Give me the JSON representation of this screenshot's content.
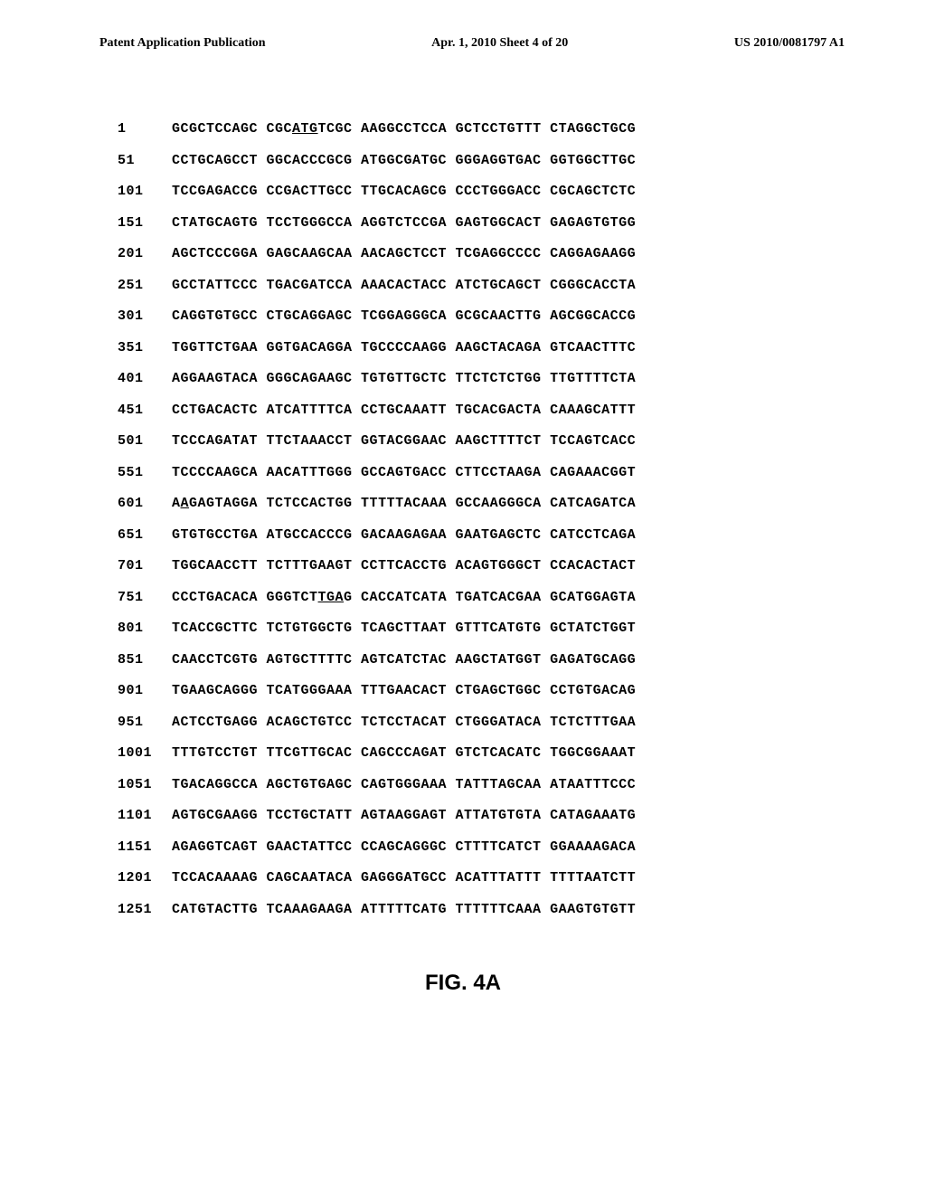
{
  "header": {
    "left": "Patent Application Publication",
    "center": "Apr. 1, 2010   Sheet 4 of 20",
    "right": "US 2010/0081797 A1"
  },
  "figure_label": "FIG.  4A",
  "sequence": {
    "font_family": "Courier New",
    "font_size": 15,
    "font_weight": "bold",
    "line_height": 2.3,
    "rows": [
      {
        "pos": "1",
        "blocks": [
          "GCGCTCCAGC",
          "CGC<u>ATG</u>TCGC",
          "AAGGCCTCCA",
          "GCTCCTGTTT",
          "CTAGGCTGCG"
        ]
      },
      {
        "pos": "51",
        "blocks": [
          "CCTGCAGCCT",
          "GGCACCCGCG",
          "ATGGCGATGC",
          "GGGAGGTGAC",
          "GGTGGCTTGC"
        ]
      },
      {
        "pos": "101",
        "blocks": [
          "TCCGAGACCG",
          "CCGACTTGCC",
          "TTGCACAGCG",
          "CCCTGGGACC",
          "CGCAGCTCTC"
        ]
      },
      {
        "pos": "151",
        "blocks": [
          "CTATGCAGTG",
          "TCCTGGGCCA",
          "AGGTCTCCGA",
          "GAGTGGCACT",
          "GAGAGTGTGG"
        ]
      },
      {
        "pos": "201",
        "blocks": [
          "AGCTCCCGGA",
          "GAGCAAGCAA",
          "AACAGCTCCT",
          "TCGAGGCCCC",
          "CAGGAGAAGG"
        ]
      },
      {
        "pos": "251",
        "blocks": [
          "GCCTATTCCC",
          "TGACGATCCA",
          "AAACACTACC",
          "ATCTGCAGCT",
          "CGGGCACCTA"
        ]
      },
      {
        "pos": "301",
        "blocks": [
          "CAGGTGTGCC",
          "CTGCAGGAGC",
          "TCGGAGGGCA",
          "GCGCAACTTG",
          "AGCGGCACCG"
        ]
      },
      {
        "pos": "351",
        "blocks": [
          "TGGTTCTGAA",
          "GGTGACAGGA",
          "TGCCCCAAGG",
          "AAGCTACAGA",
          "GTCAACTTTC"
        ]
      },
      {
        "pos": "401",
        "blocks": [
          "AGGAAGTACA",
          "GGGCAGAAGC",
          "TGTGTTGCTC",
          "TTCTCTCTGG",
          "TTGTTTTCTA"
        ]
      },
      {
        "pos": "451",
        "blocks": [
          "CCTGACACTC",
          "ATCATTTTCA",
          "CCTGCAAATT",
          "TGCACGACTA",
          "CAAAGCATTT"
        ]
      },
      {
        "pos": "501",
        "blocks": [
          "TCCCAGATAT",
          "TTCTAAACCT",
          "GGTACGGAAC",
          "AAGCTTTTCT",
          "TCCAGTCACC"
        ]
      },
      {
        "pos": "551",
        "blocks": [
          "TCCCCAAGCA",
          "AACATTTGGG",
          "GCCAGTGACC",
          "CTTCCTAAGA",
          "CAGAAACGGT"
        ]
      },
      {
        "pos": "601",
        "blocks": [
          "A<u>A</u>GAGTAGGA",
          "TCTCCACTGG",
          "TTTTTACAAA",
          "GCCAAGGGCA",
          "CATCAGATCA"
        ]
      },
      {
        "pos": "651",
        "blocks": [
          "GTGTGCCTGA",
          "ATGCCACCCG",
          "GACAAGAGAA",
          "GAATGAGCTC",
          "CATCCTCAGA"
        ]
      },
      {
        "pos": "701",
        "blocks": [
          "TGGCAACCTT",
          "TCTTTGAAGT",
          "CCTTCACCTG",
          "ACAGTGGGCT",
          "CCACACTACT"
        ]
      },
      {
        "pos": "751",
        "blocks": [
          "CCCTGACACA",
          "GGGTCT<u>TGA</u>G",
          "CACCATCATA",
          "TGATCACGAA",
          "GCATGGAGTA"
        ]
      },
      {
        "pos": "801",
        "blocks": [
          "TCACCGCTTC",
          "TCTGTGGCTG",
          "TCAGCTTAAT",
          "GTTTCATGTG",
          "GCTATCTGGT"
        ]
      },
      {
        "pos": "851",
        "blocks": [
          "CAACCTCGTG",
          "AGTGCTTTTC",
          "AGTCATCTAC",
          "AAGCTATGGT",
          "GAGATGCAGG"
        ]
      },
      {
        "pos": "901",
        "blocks": [
          "TGAAGCAGGG",
          "TCATGGGAAA",
          "TTTGAACACT",
          "CTGAGCTGGC",
          "CCTGTGACAG"
        ]
      },
      {
        "pos": "951",
        "blocks": [
          "ACTCCTGAGG",
          "ACAGCTGTCC",
          "TCTCCTACAT",
          "CTGGGATACA",
          "TCTCTTTGAA"
        ]
      },
      {
        "pos": "1001",
        "blocks": [
          "TTTGTCCTGT",
          "TTCGTTGCAC",
          "CAGCCCAGAT",
          "GTCTCACATC",
          "TGGCGGAAAT"
        ]
      },
      {
        "pos": "1051",
        "blocks": [
          "TGACAGGCCA",
          "AGCTGTGAGC",
          "CAGTGGGAAA",
          "TATTTAGCAA",
          "ATAATTTCCC"
        ]
      },
      {
        "pos": "1101",
        "blocks": [
          "AGTGCGAAGG",
          "TCCTGCTATT",
          "AGTAAGGAGT",
          "ATTATGTGTA",
          "CATAGAAATG"
        ]
      },
      {
        "pos": "1151",
        "blocks": [
          "AGAGGTCAGT",
          "GAACTATTCC",
          "CCAGCAGGGC",
          "CTTTTCATCT",
          "GGAAAAGACA"
        ]
      },
      {
        "pos": "1201",
        "blocks": [
          "TCCACAAAAG",
          "CAGCAATACA",
          "GAGGGATGCC",
          "ACATTTATTT",
          "TTTTAATCTT"
        ]
      },
      {
        "pos": "1251",
        "blocks": [
          "CATGTACTTG",
          "TCAAAGAAGA",
          "ATTTTTCATG",
          "TTTTTTCAAA",
          "GAAGTGTGTT"
        ]
      }
    ]
  }
}
